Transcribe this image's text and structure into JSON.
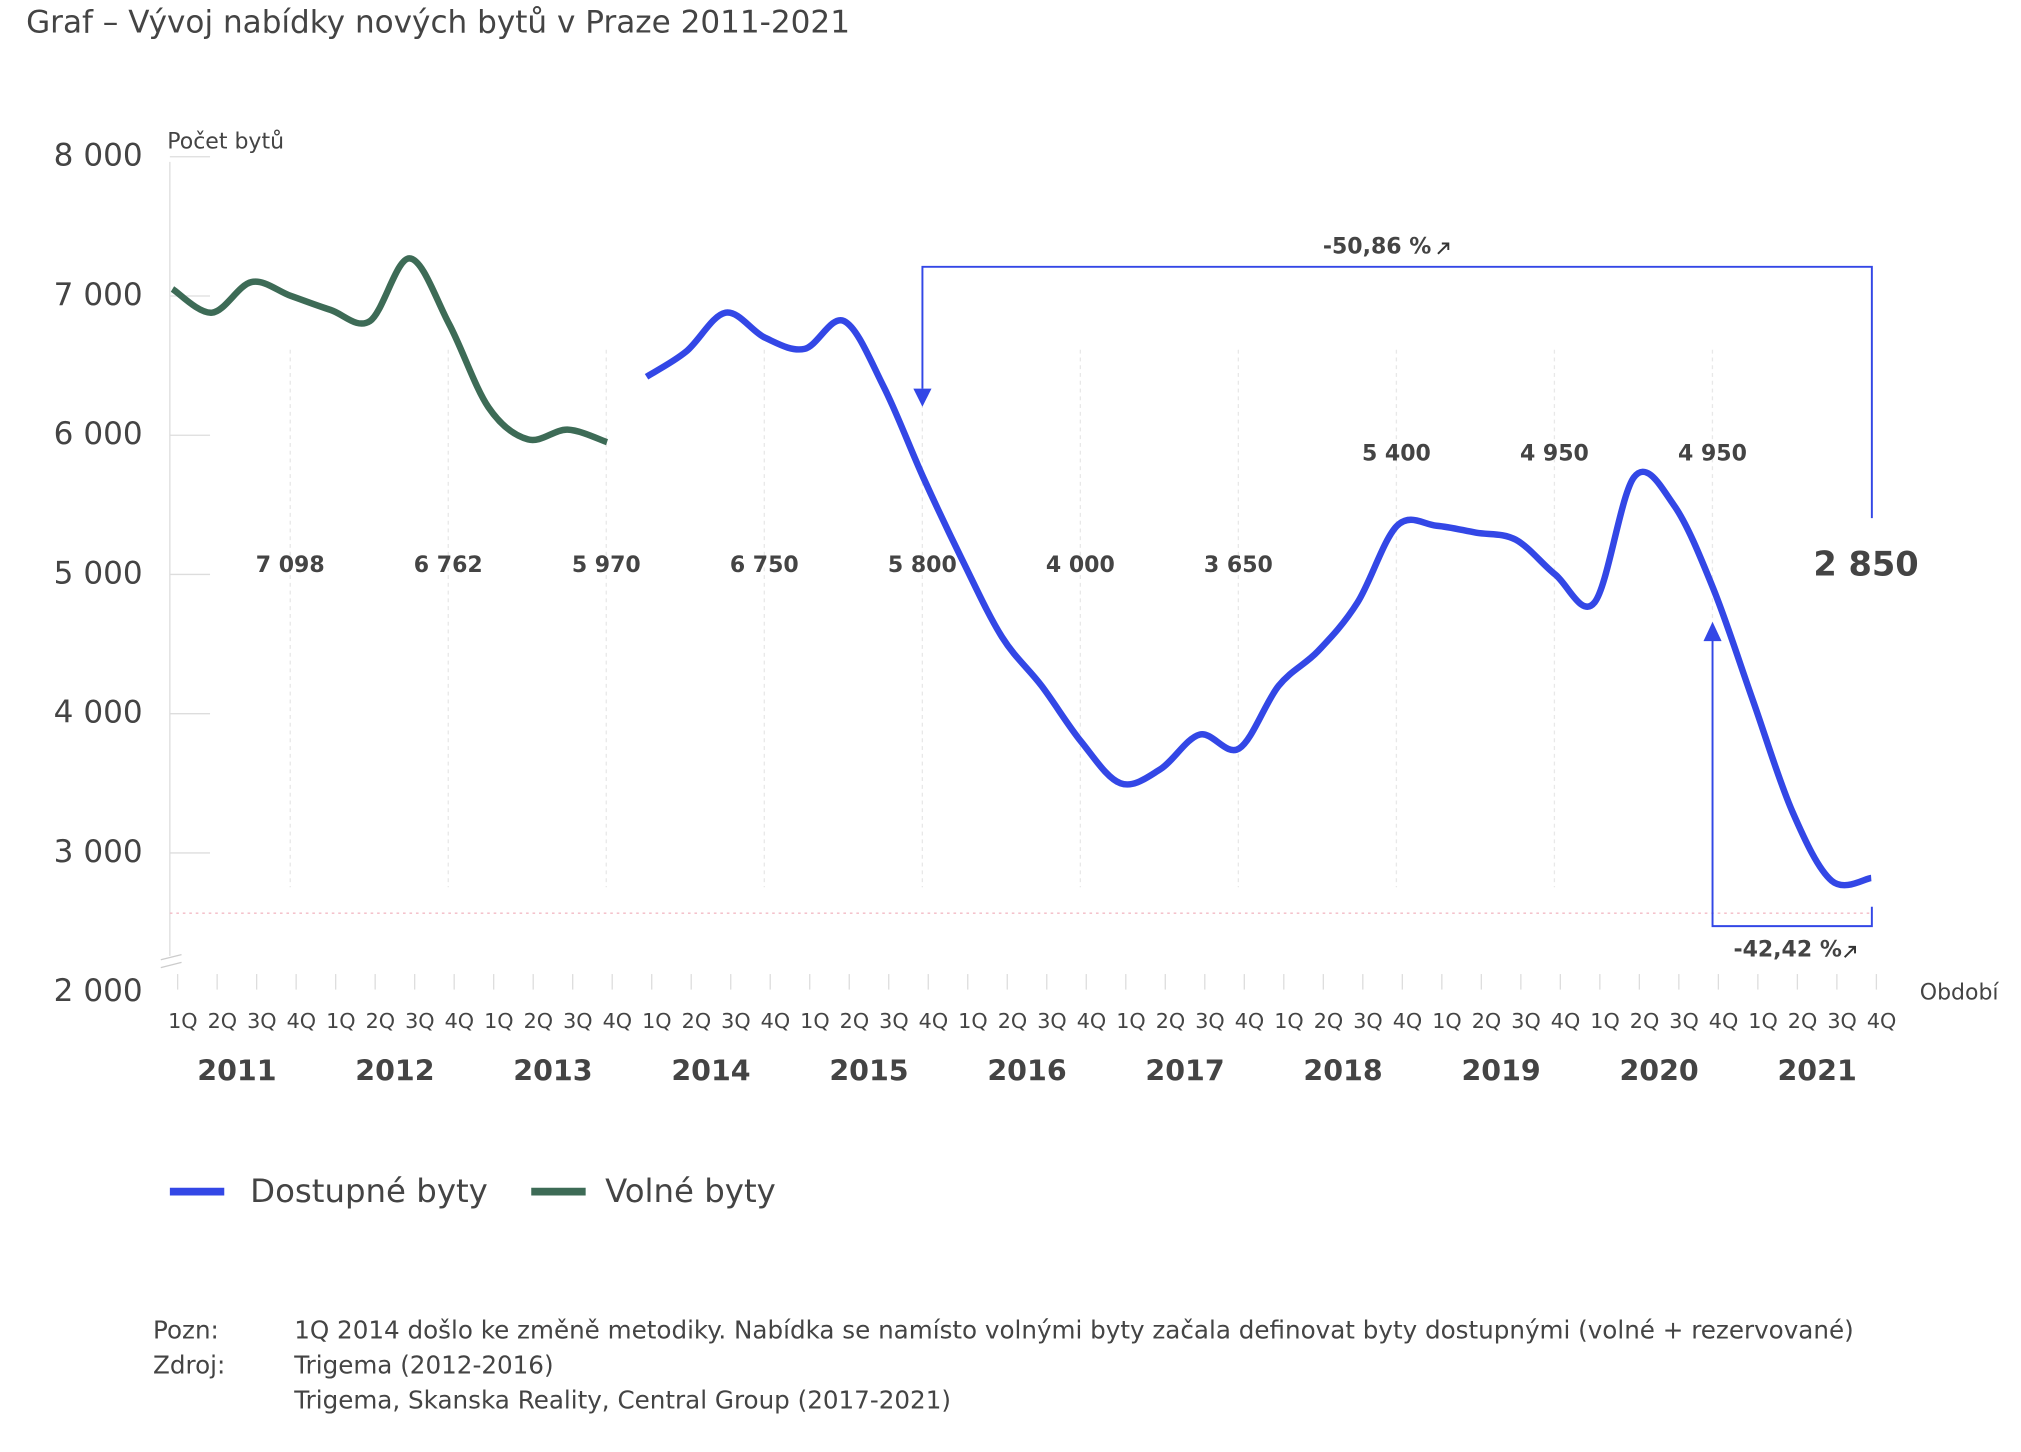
{
  "chart_data": {
    "type": "line",
    "title": "Graf – Vývoj nabídky nových bytů v Praze  2011-2021",
    "y_label": "Počet bytů",
    "x_label": "Období",
    "categories": [
      "1Q",
      "2Q",
      "3Q",
      "4Q",
      "1Q",
      "2Q",
      "3Q",
      "4Q",
      "1Q",
      "2Q",
      "3Q",
      "4Q",
      "1Q",
      "2Q",
      "3Q",
      "4Q",
      "1Q",
      "2Q",
      "3Q",
      "4Q",
      "1Q",
      "2Q",
      "3Q",
      "4Q",
      "1Q",
      "2Q",
      "3Q",
      "4Q",
      "1Q",
      "2Q",
      "3Q",
      "4Q",
      "1Q",
      "2Q",
      "3Q",
      "4Q",
      "1Q",
      "2Q",
      "3Q",
      "4Q",
      "1Q",
      "2Q",
      "3Q",
      "4Q"
    ],
    "years": [
      "2011",
      "2012",
      "2013",
      "2014",
      "2015",
      "2016",
      "2017",
      "2018",
      "2019",
      "2020",
      "2021"
    ],
    "year_values": [
      7098,
      6762,
      5970,
      6750,
      5800,
      4000,
      3650,
      5400,
      4950,
      4950,
      2850
    ],
    "year_value_labels": [
      "7 098",
      "6 762",
      "5 970",
      "6 750",
      "5 800",
      "4 000",
      "3 650",
      "5 400",
      "4 950",
      "4 950",
      "2 850"
    ],
    "series": [
      {
        "name": "Dostupné byty",
        "color": "#3347e6",
        "values": [
          null,
          null,
          null,
          null,
          null,
          null,
          null,
          null,
          null,
          null,
          null,
          null,
          6420,
          6600,
          6880,
          6700,
          6620,
          6820,
          6350,
          5700,
          5100,
          4550,
          4200,
          3800,
          3500,
          3600,
          3850,
          3750,
          4200,
          4450,
          4800,
          5350,
          5350,
          5300,
          5250,
          5000,
          4800,
          5700,
          5500,
          4900,
          4100,
          3300,
          2800,
          2820
        ]
      },
      {
        "name": "Volné byty",
        "color": "#3d6b56",
        "values": [
          7050,
          6880,
          7100,
          7000,
          6900,
          6820,
          7270,
          6800,
          6200,
          5970,
          6040,
          5950,
          null,
          null,
          null,
          null,
          null,
          null,
          null,
          null,
          null,
          null,
          null,
          null,
          null,
          null,
          null,
          null,
          null,
          null,
          null,
          null,
          null,
          null,
          null,
          null,
          null,
          null,
          null,
          null,
          null,
          null,
          null,
          null
        ]
      }
    ],
    "annotations": [
      "-50,86 %",
      "-42,42 %"
    ],
    "ylim": [
      2000,
      8000
    ],
    "yticks": [
      {
        "value": 2000,
        "label": "2 000"
      },
      {
        "value": 3000,
        "label": "3 000"
      },
      {
        "value": 4000,
        "label": "4 000"
      },
      {
        "value": 5000,
        "label": "5 000"
      },
      {
        "value": 6000,
        "label": "6 000"
      },
      {
        "value": 7000,
        "label": "7 000"
      },
      {
        "value": 8000,
        "label": "8 000"
      }
    ]
  },
  "notes": {
    "note_label": "Pozn:",
    "note_text": "1Q 2014 došlo ke změně metodiky. Nabídka se namísto volnými byty začala definovat byty dostupnými (volné + rezervované)",
    "source_label": "Zdroj:",
    "source_lines": [
      "Trigema (2012-2016)",
      "Trigema, Skanska Reality, Central Group (2017-2021)"
    ]
  }
}
